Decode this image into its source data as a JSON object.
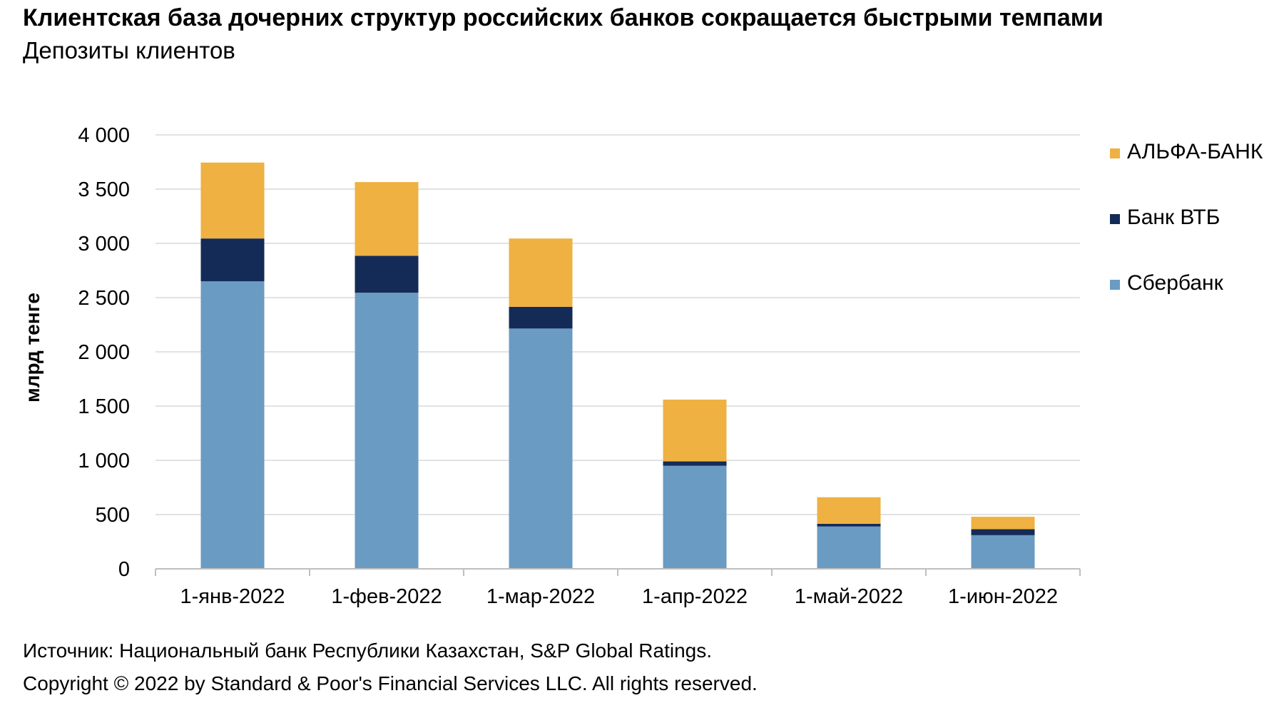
{
  "chart_data": {
    "type": "bar",
    "stacked": true,
    "title": "Клиентская база дочерних структур российских банков сокращается быстрыми темпами",
    "subtitle": "Депозиты клиентов",
    "ylabel": "млрд тенге",
    "xlabel": "",
    "ylim": [
      0,
      4000
    ],
    "yticks": [
      0,
      500,
      1000,
      1500,
      2000,
      2500,
      3000,
      3500,
      4000
    ],
    "ytick_labels": [
      "0",
      "500",
      "1 000",
      "1 500",
      "2 000",
      "2 500",
      "3 000",
      "3 500",
      "4 000"
    ],
    "grid": true,
    "legend_position": "right",
    "categories": [
      "1-янв-2022",
      "1-фев-2022",
      "1-мар-2022",
      "1-апр-2022",
      "1-май-2022",
      "1-июн-2022"
    ],
    "series": [
      {
        "name": "Сбербанк",
        "color": "#6A9BC3",
        "values": [
          2650,
          2545,
          2215,
          950,
          390,
          310
        ]
      },
      {
        "name": "Банк ВТБ",
        "color": "#142B57",
        "values": [
          395,
          340,
          200,
          40,
          25,
          55
        ]
      },
      {
        "name": "АЛЬФА-БАНК",
        "color": "#EEB142",
        "values": [
          700,
          680,
          630,
          570,
          245,
          115
        ]
      }
    ]
  },
  "source": "Источник: Национальный банк Республики Казахстан, S&P Global Ratings.",
  "copyright": "Copyright © 2022 by Standard & Poor's Financial Services LLC. All rights reserved."
}
